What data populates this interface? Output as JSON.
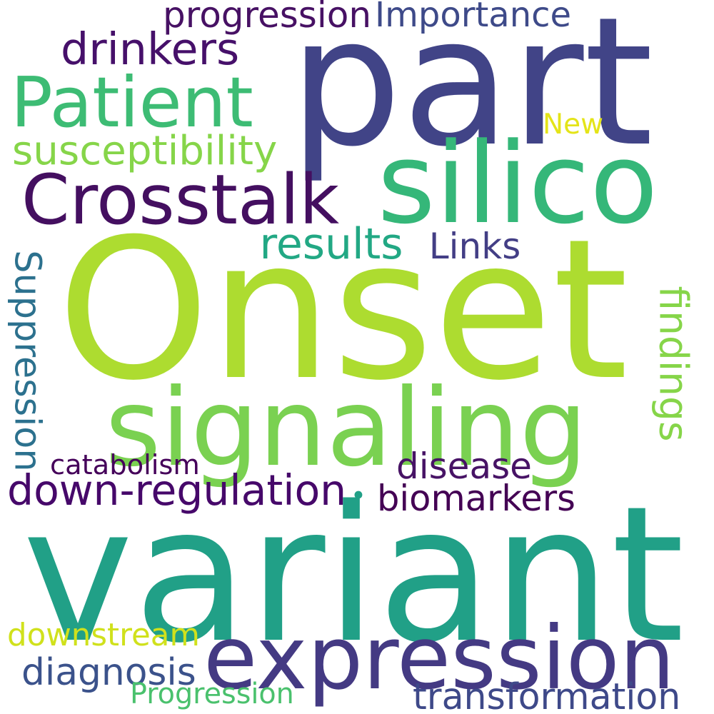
{
  "words": [
    {
      "text": "Onset",
      "color": "#addc30"
    },
    {
      "text": "variant",
      "color": "#21a087"
    },
    {
      "text": "part",
      "color": "#414487"
    },
    {
      "text": "signaling",
      "color": "#7ad151"
    },
    {
      "text": "expression",
      "color": "#443a83"
    },
    {
      "text": "silico",
      "color": "#35b779"
    },
    {
      "text": "Crosstalk",
      "color": "#440f60"
    },
    {
      "text": "Patient",
      "color": "#3dbc74"
    },
    {
      "text": "down-regulation",
      "color": "#46086a"
    },
    {
      "text": "drinkers",
      "color": "#46106a"
    },
    {
      "text": "progression",
      "color": "#471164"
    },
    {
      "text": "Importance",
      "color": "#3e4a89"
    },
    {
      "text": "susceptibility",
      "color": "#86d549"
    },
    {
      "text": "results",
      "color": "#22a884"
    },
    {
      "text": "Links",
      "color": "#433e85"
    },
    {
      "text": "New",
      "color": "#e4e419"
    },
    {
      "text": "Suppression",
      "color": "#2c718e"
    },
    {
      "text": "findings",
      "color": "#86d549"
    },
    {
      "text": "disease",
      "color": "#471365"
    },
    {
      "text": "biomarkers",
      "color": "#440154"
    },
    {
      "text": "catabolism",
      "color": "#45015a"
    },
    {
      "text": "downstream",
      "color": "#d0e11c"
    },
    {
      "text": "diagnosis",
      "color": "#3b528b"
    },
    {
      "text": "transformation",
      "color": "#3e4989"
    },
    {
      "text": "Progression",
      "color": "#4ac16d"
    },
    {
      "text": "•",
      "color": "#21a087"
    }
  ]
}
